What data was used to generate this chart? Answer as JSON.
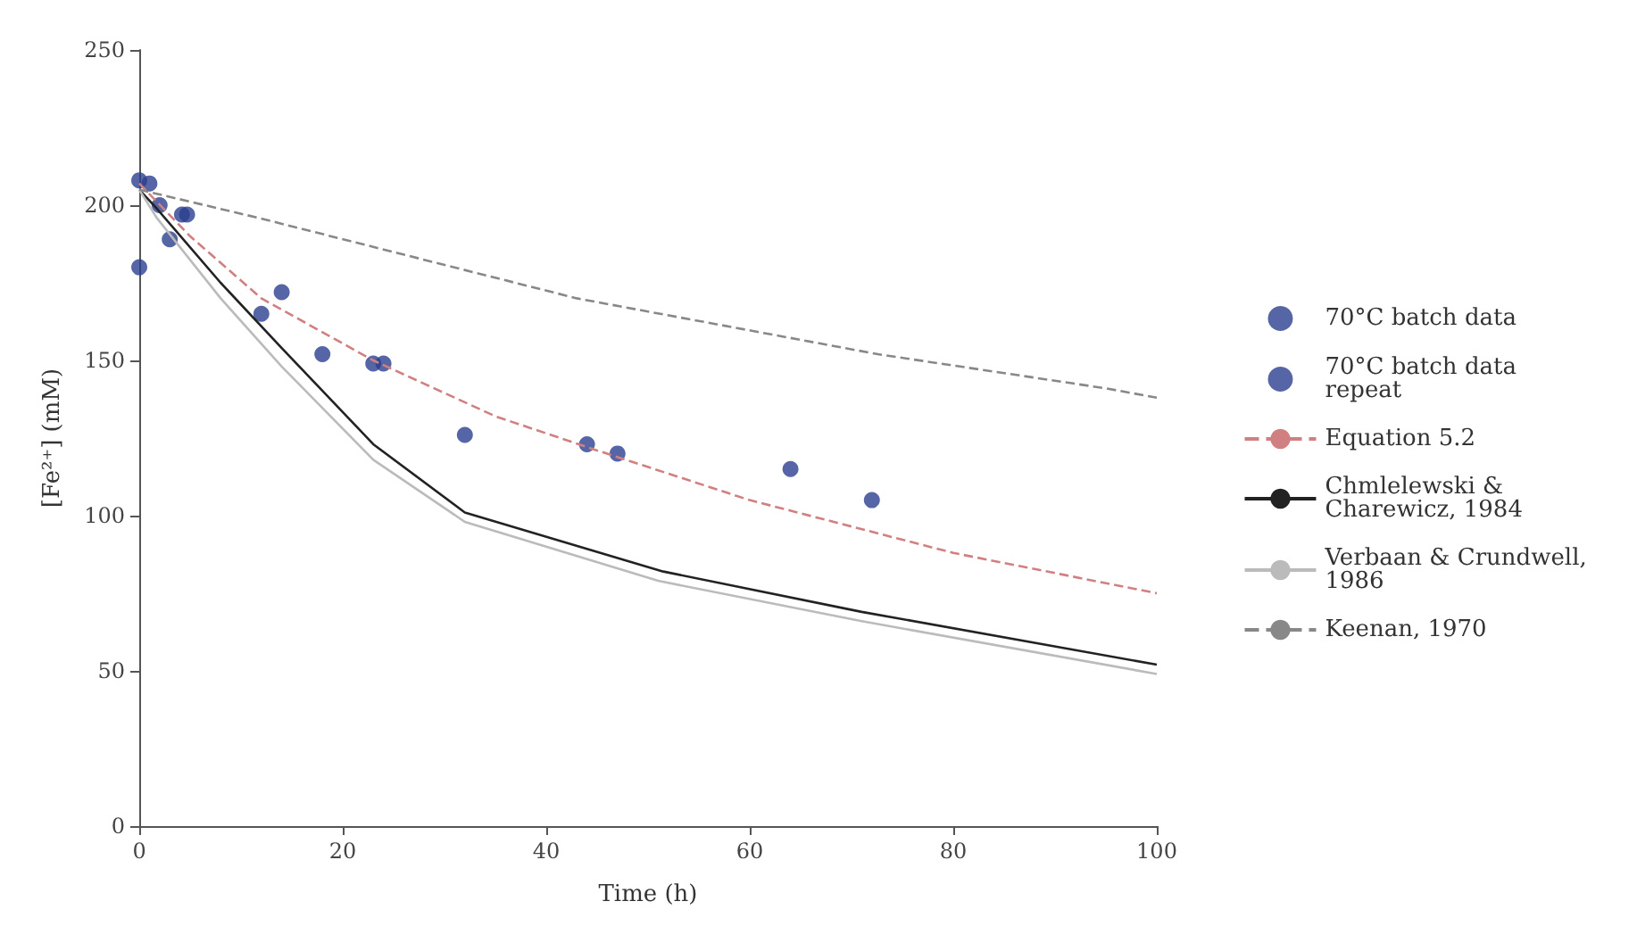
{
  "chart_data": {
    "type": "scatter",
    "xlabel": "Time (h)",
    "ylabel": "[Fe²⁺] (mM)",
    "xlim": [
      0,
      100
    ],
    "xticks": [
      0,
      20,
      40,
      60,
      80,
      100
    ],
    "ylim": [
      0,
      250
    ],
    "yticks": [
      0,
      50,
      100,
      150,
      200,
      250
    ],
    "grid": false,
    "legend": "right",
    "marker": "circle",
    "series": [
      {
        "name": "70°C batch data",
        "color": "#2b3f8f",
        "x": [
          0,
          1,
          2,
          3,
          4.2,
          4.7,
          12,
          14,
          18,
          23,
          32,
          44,
          64
        ],
        "values": [
          180,
          207,
          200,
          189,
          197,
          197,
          165,
          172,
          152,
          149,
          126,
          123,
          115
        ]
      },
      {
        "name": "70°C batch data repeat",
        "color": "#2b3f8f",
        "x": [
          0,
          24,
          47,
          72
        ],
        "values": [
          208,
          149,
          120,
          105
        ]
      },
      {
        "name": "Equation 5.2",
        "type": "line",
        "marker": "none",
        "line_style": "dashed",
        "color": "#d08080",
        "x": [
          0,
          5,
          12,
          23,
          35,
          45,
          60,
          80,
          100
        ],
        "values": [
          207,
          190,
          170,
          150,
          132,
          121,
          105,
          88,
          75
        ]
      },
      {
        "name": "Chmlelewski & Charewicz, 1984",
        "type": "line",
        "marker": "none",
        "line_style": "solid",
        "color": "#222222",
        "x": [
          0,
          1.7,
          8,
          14,
          23,
          32,
          51.5,
          71,
          100
        ],
        "values": [
          205,
          199,
          175,
          154,
          123,
          101,
          82,
          69,
          52
        ]
      },
      {
        "name": "Verbaan & Crundwell, 1986",
        "type": "line",
        "marker": "none",
        "line_style": "solid",
        "color": "#bbbbbb",
        "x": [
          0,
          1.7,
          8,
          14,
          23,
          32,
          51,
          71,
          100
        ],
        "values": [
          205,
          196,
          170,
          148,
          118,
          98,
          79,
          66,
          49
        ]
      },
      {
        "name": "Keenan, 1970",
        "type": "line",
        "marker": "none",
        "line_style": "dashed",
        "color": "#888888",
        "x": [
          0,
          11.6,
          43,
          72.6,
          95,
          100
        ],
        "values": [
          205,
          196,
          170,
          152,
          141,
          138
        ]
      }
    ]
  }
}
